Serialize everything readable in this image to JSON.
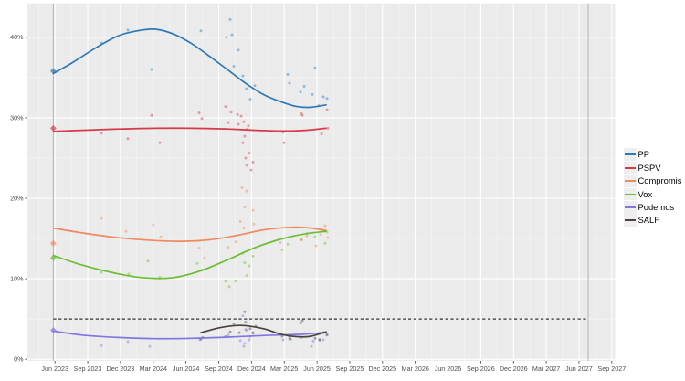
{
  "chart_data": {
    "type": "scatter",
    "title": "",
    "xlabel": "",
    "ylabel": "",
    "x_axis": {
      "ticks": [
        {
          "label": "Jun 2023",
          "t": 2023.4167
        },
        {
          "label": "Sep 2023",
          "t": 2023.6667
        },
        {
          "label": "Dec 2023",
          "t": 2023.9167
        },
        {
          "label": "Mar 2024",
          "t": 2024.1667
        },
        {
          "label": "Jun 2024",
          "t": 2024.4167
        },
        {
          "label": "Sep 2024",
          "t": 2024.6667
        },
        {
          "label": "Dec 2024",
          "t": 2024.9167
        },
        {
          "label": "Mar 2025",
          "t": 2025.1667
        },
        {
          "label": "Jun 2025",
          "t": 2025.4167
        },
        {
          "label": "Sep 2025",
          "t": 2025.6667
        },
        {
          "label": "Dec 2025",
          "t": 2025.9167
        },
        {
          "label": "Mar 2026",
          "t": 2026.1667
        },
        {
          "label": "Jun 2026",
          "t": 2026.4167
        },
        {
          "label": "Sep 2026",
          "t": 2026.6667
        },
        {
          "label": "Dec 2026",
          "t": 2026.9167
        },
        {
          "label": "Mar 2027",
          "t": 2027.1667
        },
        {
          "label": "Jun 2027",
          "t": 2027.4167
        },
        {
          "label": "Sep 2027",
          "t": 2027.6667
        }
      ],
      "lim": [
        2023.206,
        2027.693
      ]
    },
    "y_axis": {
      "ticks": [
        {
          "label": "0%",
          "v": 0
        },
        {
          "label": "10%",
          "v": 10
        },
        {
          "label": "20%",
          "v": 20
        },
        {
          "label": "30%",
          "v": 30
        },
        {
          "label": "40%",
          "v": 40
        }
      ],
      "lim": [
        -0.25,
        44.2
      ]
    },
    "grid": "on",
    "legend_position": "right",
    "threshold_line": {
      "value": 5,
      "from_t": 2023.404,
      "to_t": 2027.487,
      "color": "#333333",
      "style": "dashed"
    },
    "event_lines": [
      {
        "name": "2023 election",
        "t": 2023.404
      },
      {
        "name": "next election",
        "t": 2027.487
      }
    ],
    "election_marker_t": 2023.404,
    "series": [
      {
        "name": "PP",
        "color": "#2C79B8",
        "election_result": 35.8,
        "points": [
          [
            2023.771,
            39.3
          ],
          [
            2023.973,
            40.9
          ],
          [
            2024.154,
            36.0
          ],
          [
            2024.531,
            40.8
          ],
          [
            2024.726,
            40.0
          ],
          [
            2024.754,
            42.2
          ],
          [
            2024.768,
            40.3
          ],
          [
            2024.782,
            36.4
          ],
          [
            2024.817,
            38.4
          ],
          [
            2024.851,
            35.2
          ],
          [
            2024.879,
            33.6
          ],
          [
            2024.907,
            32.3
          ],
          [
            2024.942,
            34.0
          ],
          [
            2025.193,
            35.4
          ],
          [
            2025.207,
            34.3
          ],
          [
            2025.291,
            33.2
          ],
          [
            2025.319,
            33.9
          ],
          [
            2025.381,
            32.9
          ],
          [
            2025.402,
            36.2
          ],
          [
            2025.43,
            31.5
          ],
          [
            2025.465,
            32.6
          ],
          [
            2025.493,
            32.4
          ]
        ],
        "trend": [
          [
            2023.404,
            35.5
          ],
          [
            2023.555,
            36.9
          ],
          [
            2023.729,
            38.7
          ],
          [
            2023.903,
            40.2
          ],
          [
            2024.043,
            40.8
          ],
          [
            2024.182,
            41.0
          ],
          [
            2024.322,
            40.4
          ],
          [
            2024.461,
            39.2
          ],
          [
            2024.6,
            37.6
          ],
          [
            2024.74,
            35.9
          ],
          [
            2024.879,
            34.2
          ],
          [
            2025.019,
            32.8
          ],
          [
            2025.158,
            31.9
          ],
          [
            2025.263,
            31.4
          ],
          [
            2025.367,
            31.3
          ],
          [
            2025.486,
            31.6
          ]
        ]
      },
      {
        "name": "PSPV",
        "color": "#D43A47",
        "election_result": 28.7,
        "points": [
          [
            2023.771,
            28.1
          ],
          [
            2023.973,
            27.4
          ],
          [
            2024.154,
            30.3
          ],
          [
            2024.217,
            26.9
          ],
          [
            2024.517,
            30.6
          ],
          [
            2024.538,
            29.9
          ],
          [
            2024.719,
            31.4
          ],
          [
            2024.74,
            29.4
          ],
          [
            2024.761,
            30.7
          ],
          [
            2024.81,
            30.4
          ],
          [
            2024.817,
            29.2
          ],
          [
            2024.838,
            30.2
          ],
          [
            2024.851,
            26.9
          ],
          [
            2024.858,
            29.5
          ],
          [
            2024.865,
            27.7
          ],
          [
            2024.872,
            25.0
          ],
          [
            2024.879,
            24.1
          ],
          [
            2024.886,
            28.6
          ],
          [
            2024.893,
            29.0
          ],
          [
            2024.9,
            25.6
          ],
          [
            2024.914,
            23.5
          ],
          [
            2024.928,
            24.5
          ],
          [
            2025.158,
            28.2
          ],
          [
            2025.165,
            26.9
          ],
          [
            2025.298,
            30.5
          ],
          [
            2025.305,
            30.3
          ],
          [
            2025.451,
            28.0
          ],
          [
            2025.493,
            31.0
          ],
          [
            2025.5,
            28.7
          ]
        ],
        "trend": [
          [
            2023.404,
            28.3
          ],
          [
            2023.624,
            28.45
          ],
          [
            2023.903,
            28.6
          ],
          [
            2024.182,
            28.7
          ],
          [
            2024.461,
            28.7
          ],
          [
            2024.74,
            28.6
          ],
          [
            2024.949,
            28.45
          ],
          [
            2025.158,
            28.35
          ],
          [
            2025.332,
            28.45
          ],
          [
            2025.486,
            28.7
          ]
        ]
      },
      {
        "name": "Compromis",
        "color": "#EF8A5F",
        "election_result": 14.4,
        "points": [
          [
            2023.771,
            17.5
          ],
          [
            2023.959,
            15.9
          ],
          [
            2024.168,
            16.7
          ],
          [
            2024.224,
            15.2
          ],
          [
            2024.517,
            13.8
          ],
          [
            2024.559,
            12.6
          ],
          [
            2024.74,
            13.9
          ],
          [
            2024.796,
            14.6
          ],
          [
            2024.831,
            17.1
          ],
          [
            2024.844,
            21.3
          ],
          [
            2024.858,
            16.3
          ],
          [
            2024.865,
            18.9
          ],
          [
            2024.879,
            20.9
          ],
          [
            2024.928,
            18.5
          ],
          [
            2024.935,
            16.8
          ],
          [
            2025.137,
            14.5
          ],
          [
            2025.298,
            14.8
          ],
          [
            2025.339,
            15.3
          ],
          [
            2025.409,
            14.1
          ],
          [
            2025.444,
            15.5
          ],
          [
            2025.479,
            16.6
          ],
          [
            2025.5,
            15.1
          ]
        ],
        "trend": [
          [
            2023.404,
            16.3
          ],
          [
            2023.624,
            15.7
          ],
          [
            2023.903,
            15.1
          ],
          [
            2024.182,
            14.75
          ],
          [
            2024.391,
            14.65
          ],
          [
            2024.6,
            14.85
          ],
          [
            2024.81,
            15.4
          ],
          [
            2025.019,
            16.1
          ],
          [
            2025.228,
            16.4
          ],
          [
            2025.367,
            16.3
          ],
          [
            2025.486,
            16.0
          ]
        ]
      },
      {
        "name": "Vox",
        "color": "#6ABE30",
        "election_result": 12.6,
        "points": [
          [
            2023.771,
            10.8
          ],
          [
            2023.98,
            10.6
          ],
          [
            2024.126,
            12.2
          ],
          [
            2024.217,
            10.2
          ],
          [
            2024.503,
            11.9
          ],
          [
            2024.538,
            11.1
          ],
          [
            2024.719,
            9.7
          ],
          [
            2024.747,
            9.0
          ],
          [
            2024.796,
            9.7
          ],
          [
            2024.851,
            13.2
          ],
          [
            2024.865,
            12.0
          ],
          [
            2024.879,
            10.4
          ],
          [
            2024.9,
            11.6
          ],
          [
            2024.928,
            12.8
          ],
          [
            2025.151,
            13.6
          ],
          [
            2025.193,
            14.3
          ],
          [
            2025.298,
            14.9
          ],
          [
            2025.339,
            15.6
          ],
          [
            2025.402,
            15.2
          ],
          [
            2025.451,
            16.1
          ],
          [
            2025.479,
            14.4
          ],
          [
            2025.493,
            15.8
          ]
        ],
        "trend": [
          [
            2023.404,
            12.9
          ],
          [
            2023.624,
            11.7
          ],
          [
            2023.903,
            10.6
          ],
          [
            2024.112,
            10.1
          ],
          [
            2024.322,
            10.15
          ],
          [
            2024.531,
            11.0
          ],
          [
            2024.74,
            12.4
          ],
          [
            2024.949,
            13.9
          ],
          [
            2025.158,
            15.0
          ],
          [
            2025.332,
            15.6
          ],
          [
            2025.486,
            15.9
          ]
        ]
      },
      {
        "name": "Podemos",
        "color": "#8076E0",
        "election_result": 3.6,
        "points": [
          [
            2023.771,
            1.7
          ],
          [
            2023.973,
            2.2
          ],
          [
            2024.14,
            1.6
          ],
          [
            2024.524,
            2.4
          ],
          [
            2024.74,
            3.0
          ],
          [
            2024.831,
            2.3
          ],
          [
            2024.851,
            5.4
          ],
          [
            2024.858,
            1.6
          ],
          [
            2024.865,
            1.95
          ],
          [
            2024.872,
            3.7
          ],
          [
            2024.879,
            3.6
          ],
          [
            2024.9,
            2.4
          ],
          [
            2024.907,
            2.8
          ],
          [
            2024.928,
            3.2
          ],
          [
            2025.158,
            2.4
          ],
          [
            2025.207,
            2.5
          ],
          [
            2025.298,
            2.7
          ],
          [
            2025.374,
            1.6
          ],
          [
            2025.388,
            2.25
          ],
          [
            2025.437,
            2.4
          ],
          [
            2025.465,
            2.4
          ],
          [
            2025.493,
            3.1
          ]
        ],
        "trend": [
          [
            2023.404,
            3.5
          ],
          [
            2023.624,
            3.0
          ],
          [
            2023.903,
            2.7
          ],
          [
            2024.182,
            2.55
          ],
          [
            2024.461,
            2.6
          ],
          [
            2024.74,
            2.75
          ],
          [
            2025.019,
            2.95
          ],
          [
            2025.298,
            3.1
          ],
          [
            2025.486,
            3.35
          ]
        ]
      },
      {
        "name": "SALF",
        "color": "#49423C",
        "election_result": null,
        "points": [
          [
            2024.531,
            2.5
          ],
          [
            2024.545,
            2.7
          ],
          [
            2024.719,
            2.8
          ],
          [
            2024.754,
            3.4
          ],
          [
            2024.782,
            4.4
          ],
          [
            2024.824,
            3.3
          ],
          [
            2024.865,
            5.9
          ],
          [
            2024.872,
            4.6
          ],
          [
            2024.907,
            3.8
          ],
          [
            2024.928,
            3.3
          ],
          [
            2024.949,
            4.1
          ],
          [
            2025.151,
            2.85
          ],
          [
            2025.207,
            2.8
          ],
          [
            2025.214,
            2.5
          ],
          [
            2025.291,
            4.5
          ],
          [
            2025.305,
            4.8
          ],
          [
            2025.402,
            2.6
          ],
          [
            2025.437,
            2.4
          ],
          [
            2025.465,
            3.3
          ],
          [
            2025.493,
            3.0
          ]
        ],
        "trend": [
          [
            2024.531,
            3.3
          ],
          [
            2024.684,
            3.95
          ],
          [
            2024.838,
            4.2
          ],
          [
            2025.005,
            3.8
          ],
          [
            2025.144,
            3.1
          ],
          [
            2025.263,
            2.8
          ],
          [
            2025.367,
            2.85
          ],
          [
            2025.486,
            3.4
          ]
        ]
      }
    ]
  },
  "legend": {
    "entries": [
      {
        "label": "PP",
        "color": "#2C79B8"
      },
      {
        "label": "PSPV",
        "color": "#D43A47"
      },
      {
        "label": "Compromis",
        "color": "#EF8A5F"
      },
      {
        "label": "Vox",
        "color": "#6ABE30"
      },
      {
        "label": "Podemos",
        "color": "#8076E0"
      },
      {
        "label": "SALF",
        "color": "#49423C"
      }
    ]
  },
  "colors": {
    "panel_bg": "#EBEBEB",
    "page_bg": "#FFFFFF",
    "grid_major": "#FFFFFF",
    "grid_minor": "#F5F5F5",
    "axis_text": "#4D4D4D",
    "tick_mark": "#333333",
    "event_line": "#B3B3B3",
    "legend_key_bg": "#EEEEEE",
    "legend_text": "#000000"
  }
}
